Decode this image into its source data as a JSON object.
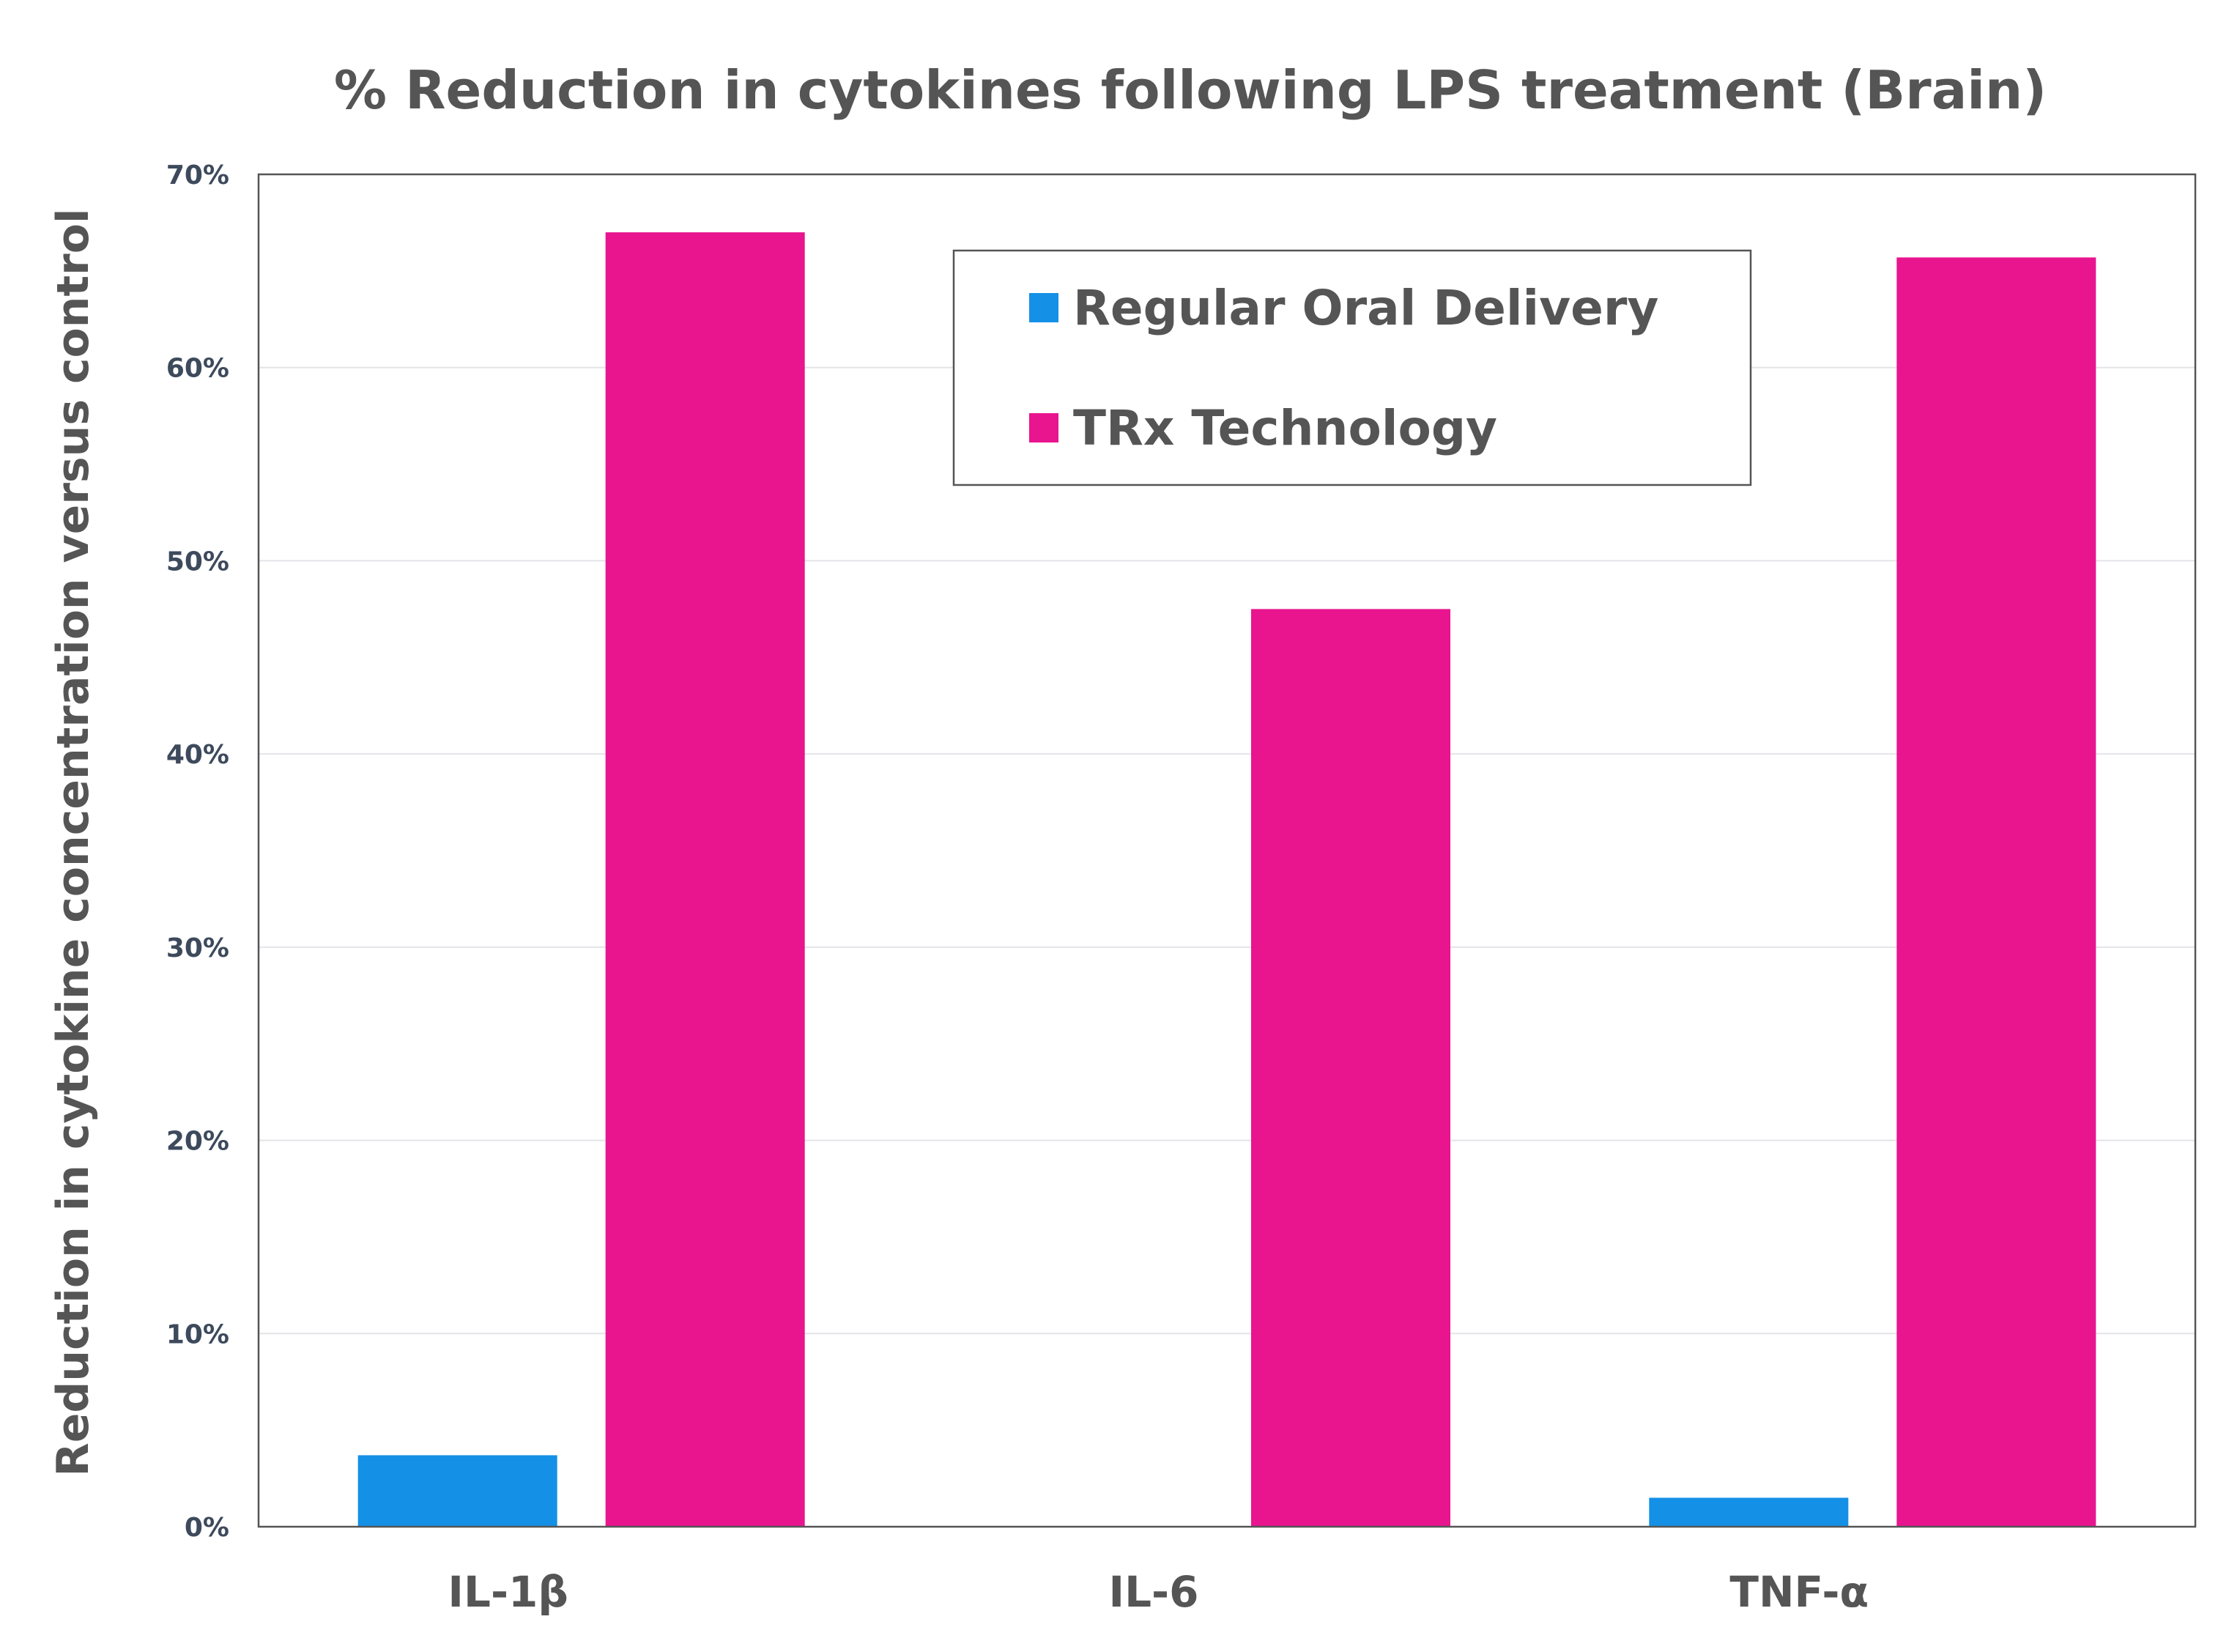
{
  "chart_data": {
    "type": "bar",
    "title": "% Reduction in cytokines following LPS treatment (Brain)",
    "xlabel": "",
    "ylabel": "Reduction in cytokine concentration versus control",
    "categories": [
      "IL-1β",
      "IL-6",
      "TNF-α"
    ],
    "series": [
      {
        "name": "Regular Oral Delivery",
        "color": "#1490e6",
        "values": [
          3.7,
          0,
          1.5
        ]
      },
      {
        "name": "TRx Technology",
        "color": "#e8158f",
        "values": [
          67,
          47.5,
          65.7
        ]
      }
    ],
    "ylim": [
      0,
      70
    ],
    "yticks": [
      0,
      10,
      20,
      30,
      40,
      50,
      60,
      70
    ],
    "ytick_labels": [
      "0%",
      "10%",
      "20%",
      "30%",
      "40%",
      "50%",
      "60%",
      "70%"
    ],
    "grid": true,
    "legend_position": "top-right"
  }
}
